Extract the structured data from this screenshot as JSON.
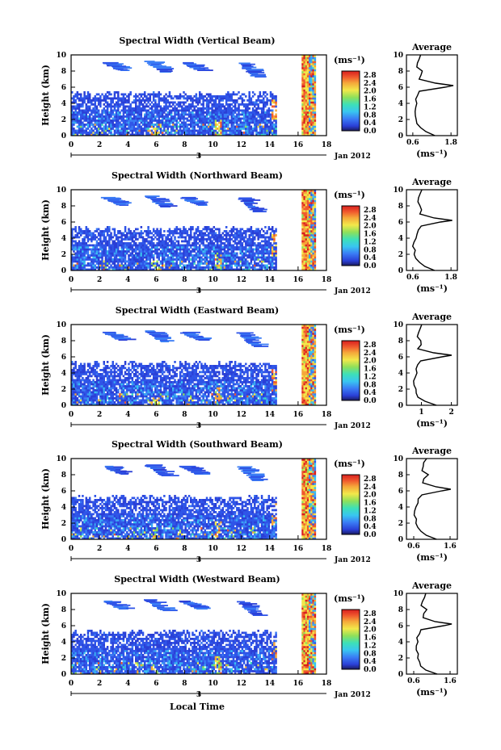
{
  "figure": {
    "xlabel": "Local Time",
    "date_label": "Jan 2012",
    "day_label": "3",
    "ylabel": "Height (km)",
    "colorbar_unit": "(ms⁻¹)",
    "profile_title": "Average",
    "profile_xlabel": "(ms⁻¹)"
  },
  "chart_data": [
    {
      "type": "heatmap",
      "title": "Spectral Width (Vertical Beam)",
      "x_ticks": [
        "0",
        "2",
        "4",
        "6",
        "8",
        "10",
        "12",
        "14",
        "16",
        "18"
      ],
      "y_ticks": [
        "0",
        "2",
        "4",
        "6",
        "8",
        "10"
      ],
      "xlim": [
        0,
        18
      ],
      "ylim": [
        0,
        10
      ],
      "colorbar_ticks": [
        "2.8",
        "2.4",
        "2.0",
        "1.6",
        "1.2",
        "0.8",
        "0.4",
        "0.0"
      ],
      "colorbar_range": [
        0,
        3.0
      ],
      "profile": {
        "x_tick_labels": [
          "0.6",
          "1.8"
        ],
        "xlim": [
          0.4,
          2.0
        ],
        "heights": [
          0,
          0.5,
          1,
          1.5,
          2,
          2.5,
          3,
          3.5,
          4,
          4.5,
          5,
          5.5,
          6,
          6.2,
          6.5,
          7,
          7.5,
          8,
          8.5,
          9,
          9.5,
          10
        ],
        "values": [
          1.3,
          1.0,
          0.85,
          0.75,
          0.7,
          0.7,
          0.65,
          0.7,
          0.75,
          0.7,
          0.75,
          0.8,
          1.6,
          1.85,
          1.3,
          0.8,
          0.85,
          0.9,
          0.7,
          0.75,
          0.8,
          0.85
        ]
      }
    },
    {
      "type": "heatmap",
      "title": "Spectral Width (Northward Beam)",
      "x_ticks": [
        "0",
        "2",
        "4",
        "6",
        "8",
        "10",
        "12",
        "14",
        "16",
        "18"
      ],
      "y_ticks": [
        "0",
        "2",
        "4",
        "6",
        "8",
        "10"
      ],
      "xlim": [
        0,
        18
      ],
      "ylim": [
        0,
        10
      ],
      "colorbar_ticks": [
        "2.8",
        "2.4",
        "2.0",
        "1.6",
        "1.2",
        "0.8",
        "0.4",
        "0.0"
      ],
      "colorbar_range": [
        0,
        3.0
      ],
      "profile": {
        "x_tick_labels": [
          "0.6",
          "1.8"
        ],
        "xlim": [
          0.4,
          2.0
        ],
        "heights": [
          0,
          0.5,
          1,
          1.5,
          2,
          2.5,
          3,
          3.5,
          4,
          4.5,
          5,
          5.5,
          6,
          6.2,
          6.5,
          7,
          7.5,
          8,
          8.5,
          9,
          9.5,
          10
        ],
        "values": [
          1.3,
          1.0,
          0.8,
          0.7,
          0.65,
          0.65,
          0.6,
          0.65,
          0.7,
          0.75,
          0.8,
          0.85,
          1.5,
          1.85,
          1.25,
          0.8,
          0.9,
          0.85,
          0.75,
          0.8,
          0.85,
          0.9
        ]
      }
    },
    {
      "type": "heatmap",
      "title": "Spectral Width (Eastward Beam)",
      "x_ticks": [
        "0",
        "2",
        "4",
        "6",
        "8",
        "10",
        "12",
        "14",
        "16",
        "18"
      ],
      "y_ticks": [
        "0",
        "2",
        "4",
        "6",
        "8",
        "10"
      ],
      "xlim": [
        0,
        18
      ],
      "ylim": [
        0,
        10
      ],
      "colorbar_ticks": [
        "2.8",
        "2.4",
        "2.0",
        "1.6",
        "1.2",
        "0.8",
        "0.4",
        "0.0"
      ],
      "colorbar_range": [
        0,
        3.0
      ],
      "profile": {
        "x_tick_labels": [
          "1",
          "2"
        ],
        "xlim": [
          0.5,
          2.2
        ],
        "heights": [
          0,
          0.5,
          1,
          1.5,
          2,
          2.5,
          3,
          3.5,
          4,
          4.5,
          5,
          5.5,
          6,
          6.2,
          6.5,
          7,
          7.5,
          8,
          8.5,
          9,
          9.5,
          10
        ],
        "values": [
          1.5,
          1.1,
          0.9,
          0.85,
          0.8,
          0.75,
          0.75,
          0.8,
          0.85,
          0.8,
          0.9,
          1.0,
          1.7,
          2.0,
          1.4,
          0.9,
          1.0,
          0.95,
          0.85,
          0.9,
          0.95,
          1.0
        ]
      }
    },
    {
      "type": "heatmap",
      "title": "Spectral Width (Southward Beam)",
      "x_ticks": [
        "0",
        "2",
        "4",
        "6",
        "8",
        "10",
        "12",
        "14",
        "16",
        "18"
      ],
      "y_ticks": [
        "0",
        "2",
        "4",
        "6",
        "8",
        "10"
      ],
      "xlim": [
        0,
        18
      ],
      "ylim": [
        0,
        10
      ],
      "colorbar_ticks": [
        "2.8",
        "2.4",
        "2.0",
        "1.6",
        "1.2",
        "0.8",
        "0.4",
        "0.0"
      ],
      "colorbar_range": [
        0,
        3.0
      ],
      "profile": {
        "x_tick_labels": [
          "0.6",
          "1.6"
        ],
        "xlim": [
          0.4,
          1.8
        ],
        "heights": [
          0,
          0.5,
          1,
          1.5,
          2,
          2.5,
          3,
          3.5,
          4,
          4.5,
          5,
          5.5,
          6,
          6.2,
          6.5,
          7,
          7.5,
          8,
          8.5,
          9,
          9.5,
          10
        ],
        "values": [
          1.2,
          0.95,
          0.8,
          0.7,
          0.65,
          0.65,
          0.6,
          0.6,
          0.65,
          0.7,
          0.75,
          0.8,
          1.4,
          1.6,
          1.2,
          0.85,
          0.9,
          1.0,
          0.8,
          0.85,
          0.9,
          0.95
        ]
      }
    },
    {
      "type": "heatmap",
      "title": "Spectral Width (Westward Beam)",
      "x_ticks": [
        "0",
        "2",
        "4",
        "6",
        "8",
        "10",
        "12",
        "14",
        "16",
        "18"
      ],
      "y_ticks": [
        "0",
        "2",
        "4",
        "6",
        "8",
        "10"
      ],
      "xlim": [
        0,
        18
      ],
      "ylim": [
        0,
        10
      ],
      "colorbar_ticks": [
        "2.8",
        "2.4",
        "2.0",
        "1.6",
        "1.2",
        "0.8",
        "0.4",
        "0.0"
      ],
      "colorbar_range": [
        0,
        3.0
      ],
      "profile": {
        "x_tick_labels": [
          "0.6",
          "1.6"
        ],
        "xlim": [
          0.4,
          1.8
        ],
        "heights": [
          0,
          0.5,
          1,
          1.5,
          2,
          2.5,
          3,
          3.5,
          4,
          4.5,
          5,
          5.5,
          6,
          6.2,
          6.5,
          7,
          7.5,
          8,
          8.5,
          9,
          9.5,
          10
        ],
        "values": [
          1.25,
          0.95,
          0.8,
          0.75,
          0.7,
          0.7,
          0.65,
          0.65,
          0.7,
          0.7,
          0.75,
          0.8,
          1.45,
          1.65,
          1.2,
          0.85,
          0.9,
          0.95,
          0.8,
          0.85,
          0.9,
          0.95
        ]
      }
    }
  ]
}
